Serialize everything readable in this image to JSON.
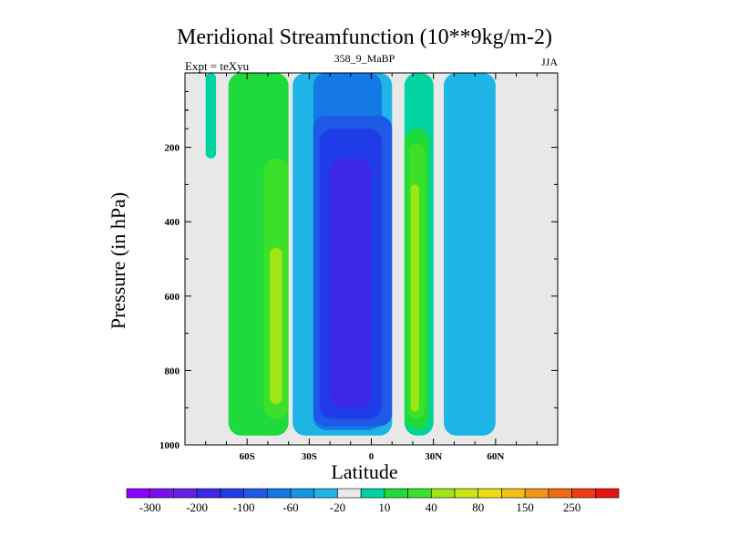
{
  "chart_data": {
    "type": "heatmap",
    "title": "Meridional Streamfunction (10**9kg/m-2)",
    "subtitle_left": "Expt = teXyu",
    "subtitle_center": "358_9_MaBP",
    "subtitle_right": "JJA",
    "xlabel": "Latitude",
    "ylabel": "Pressure (in hPa)",
    "x_range": [
      -90,
      90
    ],
    "y_range": [
      0,
      1000
    ],
    "y_reversed": true,
    "x_ticks": [
      {
        "value": -60,
        "label": "60S"
      },
      {
        "value": -30,
        "label": "30S"
      },
      {
        "value": 0,
        "label": "0"
      },
      {
        "value": 30,
        "label": "30N"
      },
      {
        "value": 60,
        "label": "60N"
      }
    ],
    "y_ticks": [
      {
        "value": 200,
        "label": "200"
      },
      {
        "value": 400,
        "label": "400"
      },
      {
        "value": 600,
        "label": "600"
      },
      {
        "value": 800,
        "label": "800"
      },
      {
        "value": 1000,
        "label": "1000"
      }
    ],
    "background_color": "#e8e8e8",
    "cells": [
      {
        "lat": [
          -80,
          -75
        ],
        "p": [
          0,
          230
        ],
        "level": 10
      },
      {
        "lat": [
          -69,
          -40
        ],
        "p": [
          0,
          975
        ],
        "level": 20
      },
      {
        "lat": [
          -55,
          -43
        ],
        "p": [
          115,
          975
        ],
        "level": 20
      },
      {
        "lat": [
          -52,
          -40
        ],
        "p": [
          230,
          930
        ],
        "level": 40
      },
      {
        "lat": [
          -49,
          -43
        ],
        "p": [
          470,
          890
        ],
        "level": 80
      },
      {
        "lat": [
          -38,
          10
        ],
        "p": [
          0,
          975
        ],
        "level": -20
      },
      {
        "lat": [
          -28,
          5
        ],
        "p": [
          0,
          960
        ],
        "level": -40
      },
      {
        "lat": [
          -28,
          10
        ],
        "p": [
          115,
          950
        ],
        "level": -60
      },
      {
        "lat": [
          -25,
          5
        ],
        "p": [
          150,
          930
        ],
        "level": -100
      },
      {
        "lat": [
          -20,
          0
        ],
        "p": [
          230,
          900
        ],
        "level": -200
      },
      {
        "lat": [
          16,
          30
        ],
        "p": [
          0,
          975
        ],
        "level": 10
      },
      {
        "lat": [
          16,
          28
        ],
        "p": [
          150,
          960
        ],
        "level": 20
      },
      {
        "lat": [
          18,
          26
        ],
        "p": [
          190,
          930
        ],
        "level": 40
      },
      {
        "lat": [
          19,
          23
        ],
        "p": [
          300,
          910
        ],
        "level": 80
      },
      {
        "lat": [
          35,
          60
        ],
        "p": [
          0,
          975
        ],
        "level": -20
      },
      {
        "lat": [
          43,
          55
        ],
        "p": [
          200,
          930
        ],
        "level": -20
      }
    ]
  },
  "colorbar": {
    "colors": [
      "#8c00ff",
      "#7a10ee",
      "#6420e6",
      "#3c28e6",
      "#1f3ce8",
      "#1e5ae6",
      "#1478e6",
      "#1496e6",
      "#1eb4e6",
      "#e8e8e8",
      "#00d2a0",
      "#1eda3c",
      "#3ce028",
      "#a0e614",
      "#c8e614",
      "#f0dc14",
      "#f0c014",
      "#f09614",
      "#f06a14",
      "#f03c14",
      "#e61414"
    ],
    "labels": [
      "-300",
      "-200",
      "-100",
      "-60",
      "-20",
      "10",
      "40",
      "80",
      "150",
      "250"
    ]
  },
  "level_colors": {
    "-200": "#3c28e6",
    "-100": "#1f3ce8",
    "-60": "#1e5ae6",
    "-40": "#1478e6",
    "-20": "#1eb4e6",
    "10": "#00d2a0",
    "20": "#1eda3c",
    "40": "#3ce028",
    "80": "#a0e614"
  }
}
